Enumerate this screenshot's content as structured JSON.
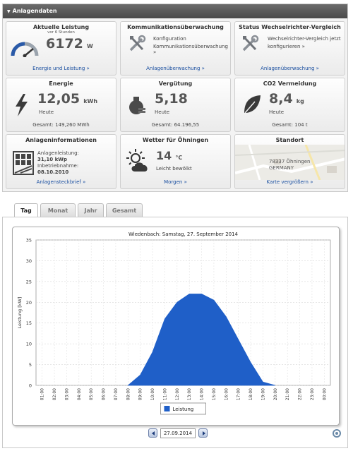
{
  "panel": {
    "title": "Anlagendaten"
  },
  "cards": {
    "leistung": {
      "title": "Aktuelle Leistung",
      "sub": "vor 6 Stunden",
      "value": "6172",
      "unit": "W",
      "link": "Energie und Leistung »"
    },
    "kommunikation": {
      "title": "Kommunikationsüberwachung",
      "text1": "Konfiguration",
      "text2": "Kommunikationsüberwachung »",
      "link": "Anlagenüberwachung »"
    },
    "status": {
      "title": "Status Wechselrichter-Vergleich",
      "text1": "Wechselrichter-Vergleich jetzt",
      "text2": "konfigurieren »",
      "link": "Anlagenüberwachung »"
    },
    "energie": {
      "title": "Energie",
      "value": "12,05",
      "unit": "kWh",
      "label": "Heute",
      "foot": "Gesamt: 149,260 MWh"
    },
    "verguetung": {
      "title": "Vergütung",
      "value": "5,18",
      "label": "Heute",
      "foot": "Gesamt: 64.196,55"
    },
    "co2": {
      "title": "CO2 Vermeidung",
      "value": "8,4",
      "unit": "kg",
      "label": "Heute",
      "foot": "Gesamt: 104 t"
    },
    "info": {
      "title": "Anlageninformationen",
      "line1": "Anlagenleistung:",
      "line2": "31,10 kWp",
      "line3": "Inbetriebnahme:",
      "line4": "08.10.2010",
      "link": "Anlagensteckbrief »"
    },
    "wetter": {
      "title": "Wetter für Öhningen",
      "value": "14",
      "unit": "°C",
      "label": "Leicht bewölkt",
      "link": "Morgen »"
    },
    "standort": {
      "title": "Standort",
      "line1": "78337 Öhningen",
      "line2": "GERMANY",
      "link": "Karte vergrößern »"
    }
  },
  "tabs": [
    "Tag",
    "Monat",
    "Jahr",
    "Gesamt"
  ],
  "active_tab": "Tag",
  "date": "27.09.2014",
  "colors": {
    "area": "#1f5fc8",
    "header": "#555555",
    "link": "#1a4fa0"
  },
  "chart_data": {
    "type": "area",
    "title": "Wiedenbach: Samstag, 27. September 2014",
    "ylabel": "Leistung [kW]",
    "xlabel": "",
    "ylim": [
      0,
      35
    ],
    "yticks": [
      0,
      5,
      10,
      15,
      20,
      25,
      30,
      35
    ],
    "categories": [
      "01:00",
      "02:00",
      "03:00",
      "04:00",
      "05:00",
      "06:00",
      "07:00",
      "08:00",
      "09:00",
      "10:00",
      "11:00",
      "12:00",
      "13:00",
      "14:00",
      "15:00",
      "16:00",
      "17:00",
      "18:00",
      "19:00",
      "20:00",
      "21:00",
      "22:00",
      "23:00",
      "00:00"
    ],
    "x": [
      "08:00",
      "09:00",
      "10:00",
      "11:00",
      "12:00",
      "13:00",
      "14:00",
      "15:00",
      "16:00",
      "17:00",
      "18:00",
      "19:00",
      "20:00"
    ],
    "series": [
      {
        "name": "Leistung",
        "values": [
          0,
          2.5,
          8,
          16,
          20,
          22,
          22,
          20.5,
          16.5,
          11,
          5.5,
          0.8,
          0
        ]
      }
    ],
    "grid": true,
    "legend": "bottom"
  }
}
